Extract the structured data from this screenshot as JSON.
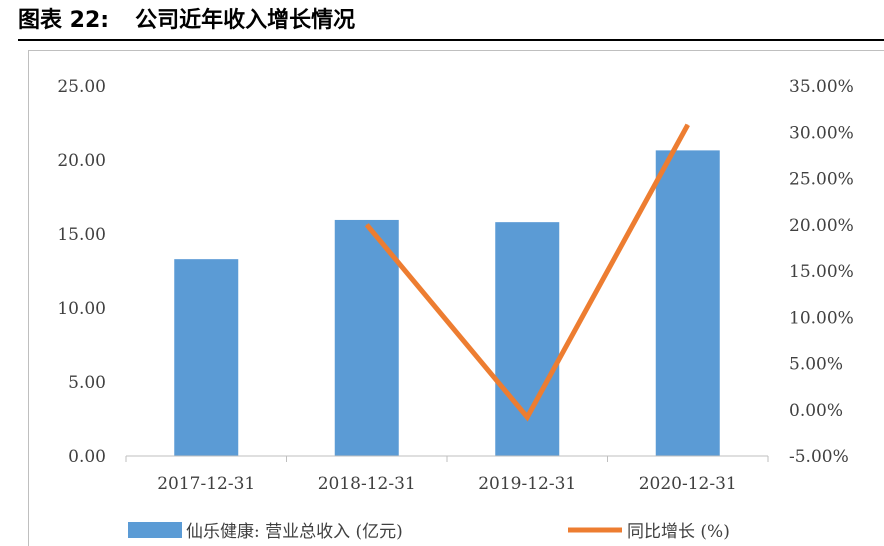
{
  "header": {
    "figure_label": "图表 22:",
    "figure_title": "公司近年收入增长情况"
  },
  "chart_data": {
    "type": "bar+line",
    "categories": [
      "2017-12-31",
      "2018-12-31",
      "2019-12-31",
      "2020-12-31"
    ],
    "series": [
      {
        "name": "仙乐健康: 营业总收入 (亿元)",
        "type": "bar",
        "axis": "left",
        "color": "#5b9bd5",
        "values": [
          13.3,
          15.95,
          15.8,
          20.65
        ]
      },
      {
        "name": "同比增长 (%)",
        "type": "line",
        "axis": "right",
        "color": "#ed7d31",
        "values": [
          null,
          20.0,
          -0.8,
          30.8
        ]
      }
    ],
    "y_left": {
      "min": 0,
      "max": 25,
      "step": 5,
      "tick_labels": [
        "0.00",
        "5.00",
        "10.00",
        "15.00",
        "20.00",
        "25.00"
      ]
    },
    "y_right": {
      "min": -5,
      "max": 35,
      "step": 5,
      "tick_labels": [
        "-5.00%",
        "0.00%",
        "5.00%",
        "10.00%",
        "15.00%",
        "20.00%",
        "25.00%",
        "30.00%",
        "35.00%"
      ]
    },
    "grid": false,
    "legend_position": "bottom"
  }
}
